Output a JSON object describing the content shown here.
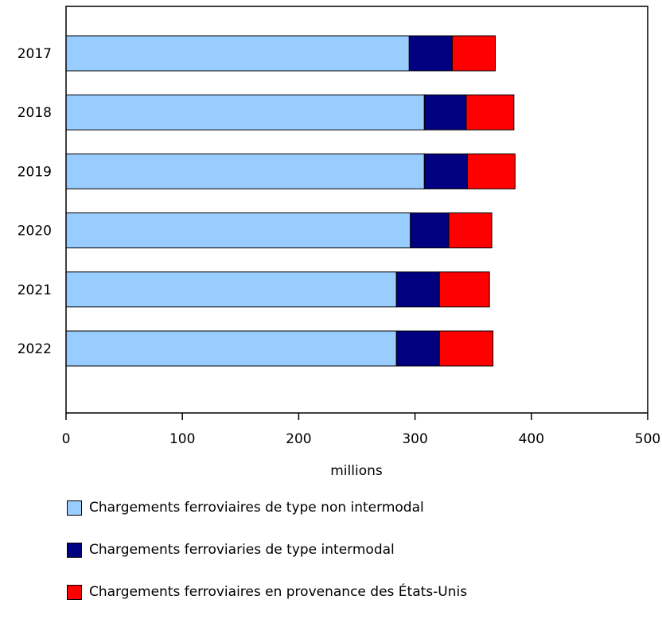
{
  "chart_data": {
    "type": "bar",
    "orientation": "horizontal",
    "stacked": true,
    "categories": [
      "2017",
      "2018",
      "2019",
      "2020",
      "2021",
      "2022"
    ],
    "series": [
      {
        "name": "Chargements ferroviaires de type non intermodal",
        "color": "#99ccff",
        "values": [
          295,
          308,
          308,
          296,
          284,
          284
        ]
      },
      {
        "name": "Chargements ferroviaries de type intermodal",
        "color": "#000080",
        "values": [
          37,
          36,
          37,
          33,
          37,
          37
        ]
      },
      {
        "name": "Chargements ferroviaires en provenance des États-Unis",
        "color": "#ff0000",
        "values": [
          37,
          41,
          41,
          37,
          43,
          46
        ]
      }
    ],
    "xlabel": "millions",
    "xlim": [
      0,
      500
    ],
    "xticks": [
      0,
      100,
      200,
      300,
      400,
      500
    ],
    "grid": false,
    "legend_position": "bottom"
  }
}
